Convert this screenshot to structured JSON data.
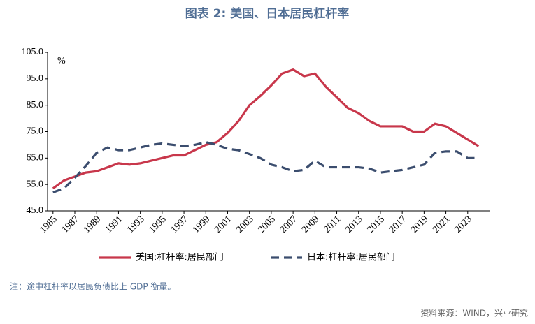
{
  "chart_data": {
    "type": "line",
    "title": "图表 2: 美国、日本居民杠杆率",
    "y_unit": "%",
    "note": "注：途中杠杆率以居民负债比上 GDP 衡量。",
    "source": "资料来源：WIND，兴业研究",
    "x": [
      1985,
      1986,
      1987,
      1988,
      1989,
      1990,
      1991,
      1992,
      1993,
      1994,
      1995,
      1996,
      1997,
      1998,
      1999,
      2000,
      2001,
      2002,
      2003,
      2004,
      2005,
      2006,
      2007,
      2008,
      2009,
      2010,
      2011,
      2012,
      2013,
      2014,
      2015,
      2016,
      2017,
      2018,
      2019,
      2020,
      2021,
      2022,
      2023,
      2024
    ],
    "xlim": [
      1984.5,
      2025
    ],
    "xticks": [
      1985,
      1987,
      1989,
      1991,
      1993,
      1995,
      1997,
      1999,
      2001,
      2003,
      2005,
      2007,
      2009,
      2011,
      2013,
      2015,
      2017,
      2019,
      2021,
      2023
    ],
    "ylim": [
      45,
      105
    ],
    "yticks": [
      {
        "value": 45,
        "label": "45.0"
      },
      {
        "value": 55,
        "label": "55.0"
      },
      {
        "value": 65,
        "label": "65.0"
      },
      {
        "value": 75,
        "label": "75.0"
      },
      {
        "value": 85,
        "label": "85.0"
      },
      {
        "value": 95,
        "label": "95.0"
      },
      {
        "value": 105,
        "label": "105.0"
      }
    ],
    "series": [
      {
        "name": "美国:杠杆率:居民部门",
        "color": "#c8374b",
        "dash": false,
        "values": [
          53.5,
          56.5,
          58,
          59.5,
          60,
          61.5,
          63,
          62.5,
          63,
          64,
          65,
          66,
          66,
          68,
          70,
          71,
          74.5,
          79,
          85,
          88.5,
          92.5,
          97,
          98.5,
          96,
          97,
          92,
          88,
          84,
          82,
          79,
          77,
          77,
          77,
          75,
          75,
          78,
          77,
          74.5,
          72,
          69.5
        ]
      },
      {
        "name": "日本:杠杆率:居民部门",
        "color": "#3b4d6e",
        "dash": true,
        "values": [
          52,
          53.5,
          57.5,
          62,
          67,
          69,
          68,
          68,
          69,
          70,
          70.5,
          70,
          69.5,
          70,
          71,
          70,
          68.5,
          68,
          66.5,
          65,
          62.5,
          61.5,
          60,
          60.5,
          64,
          61.5,
          61.5,
          61.5,
          61.5,
          61,
          59.5,
          60,
          60.5,
          61.5,
          62.5,
          67,
          67.5,
          67.5,
          65,
          65
        ]
      }
    ]
  }
}
